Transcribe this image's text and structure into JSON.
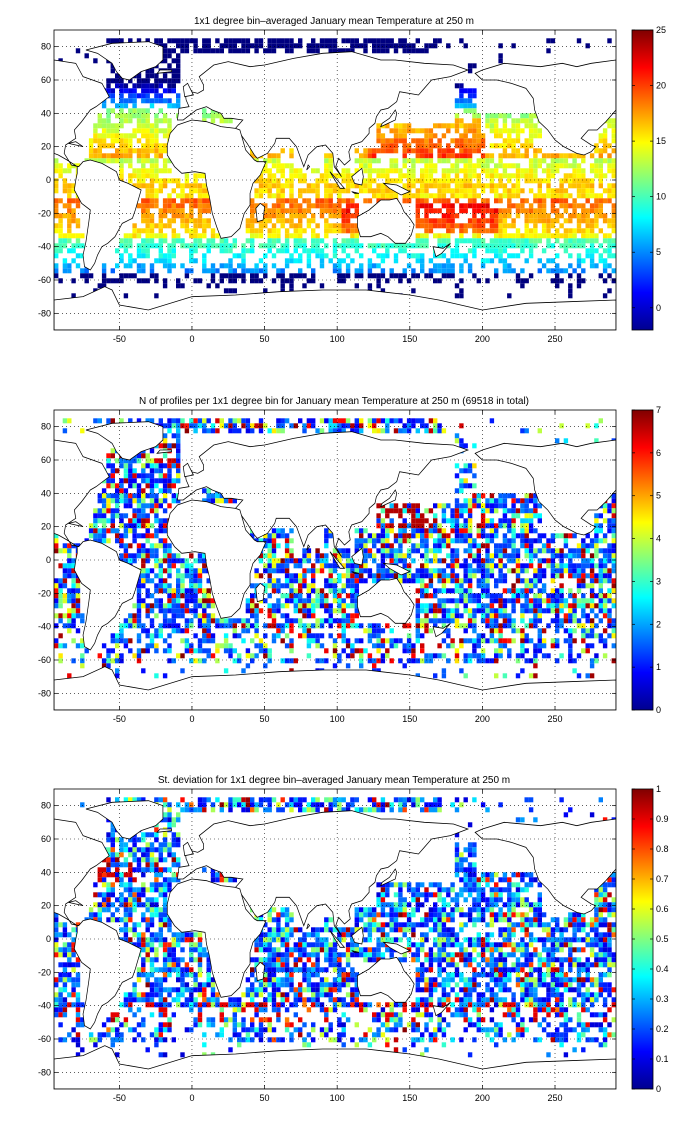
{
  "panels": [
    {
      "title": "1x1 degree bin–averaged January mean Temperature at 250 m",
      "map_x_ticks": [
        "-50",
        "0",
        "50",
        "100",
        "150",
        "200",
        "250"
      ],
      "map_y_ticks": [
        "80",
        "60",
        "40",
        "20",
        "0",
        "-20",
        "-40",
        "-60",
        "-80"
      ],
      "colorbar_ticks": [
        "25",
        "20",
        "15",
        "10",
        "5",
        "0"
      ],
      "colorbar_range": [
        -2,
        25
      ],
      "field": "temperature"
    },
    {
      "title": "N of profiles per 1x1 degree bin for January mean Temperature at 250 m (69518 in total)",
      "map_x_ticks": [
        "-50",
        "0",
        "50",
        "100",
        "150",
        "200",
        "250"
      ],
      "map_y_ticks": [
        "80",
        "60",
        "40",
        "20",
        "0",
        "-20",
        "-40",
        "-60",
        "-80"
      ],
      "colorbar_ticks": [
        "7",
        "6",
        "5",
        "4",
        "3",
        "2",
        "1",
        "0"
      ],
      "colorbar_range": [
        0,
        7
      ],
      "field": "count"
    },
    {
      "title": "St. deviation for 1x1 degree bin–averaged January mean Temperature at 250 m",
      "map_x_ticks": [
        "-50",
        "0",
        "50",
        "100",
        "150",
        "200",
        "250"
      ],
      "map_y_ticks": [
        "80",
        "60",
        "40",
        "20",
        "0",
        "-20",
        "-40",
        "-60",
        "-80"
      ],
      "colorbar_ticks": [
        "1",
        "0.9",
        "0.8",
        "0.7",
        "0.6",
        "0.5",
        "0.4",
        "0.3",
        "0.2",
        "0.1",
        "0"
      ],
      "colorbar_range": [
        0,
        1
      ],
      "field": "stddev"
    }
  ],
  "map_extent": {
    "lon": [
      -95,
      292
    ],
    "lat": [
      -90,
      90
    ]
  },
  "grid": "dotted",
  "colormap": "jet"
}
